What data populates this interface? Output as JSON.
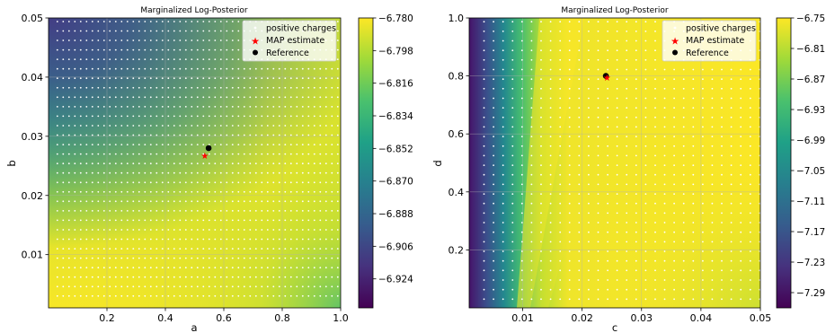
{
  "colors": {
    "viridis": [
      "#440154",
      "#46327e",
      "#365c8d",
      "#277f8e",
      "#1fa187",
      "#4ac16d",
      "#a0da39",
      "#fde725"
    ],
    "map_marker": "#ff0000",
    "reference_marker": "#000000",
    "sample_points": "#ffffff",
    "grid": "#b0b0b0"
  },
  "chart_data": [
    {
      "type": "heatmap",
      "title": "Marginalized Log-Posterior",
      "xlabel": "a",
      "ylabel": "b",
      "xlim": [
        0.0,
        1.0
      ],
      "ylim": [
        0.001,
        0.05
      ],
      "x_ticks": [
        "0.2",
        "0.4",
        "0.6",
        "0.8",
        "1.0"
      ],
      "x_tick_values": [
        0.2,
        0.4,
        0.6,
        0.8,
        1.0
      ],
      "y_ticks": [
        "0.01",
        "0.02",
        "0.03",
        "0.04",
        "0.05"
      ],
      "y_tick_values": [
        0.01,
        0.02,
        0.03,
        0.04,
        0.05
      ],
      "grid": true,
      "colorbar": {
        "range": [
          -6.94,
          -6.78
        ],
        "ticks": [
          "−6.780",
          "−6.798",
          "−6.816",
          "−6.834",
          "−6.852",
          "−6.870",
          "−6.888",
          "−6.906",
          "−6.924"
        ],
        "tick_values": [
          -6.78,
          -6.798,
          -6.816,
          -6.834,
          -6.852,
          -6.87,
          -6.888,
          -6.906,
          -6.924
        ]
      },
      "legend": {
        "placement": "top-right",
        "entries": [
          "positive charges",
          "MAP estimate",
          "Reference"
        ]
      },
      "map_estimate": {
        "x": 0.535,
        "y": 0.0268
      },
      "reference": {
        "x": 0.548,
        "y": 0.028
      },
      "sample_grid": {
        "x_start": 0.03,
        "x_step": 0.02,
        "y_start": 0.003,
        "y_step": 0.0016
      },
      "surface": {
        "low_value": -6.94,
        "high_value": -6.78,
        "low_corner": "top-left",
        "high_region": "bottom-center"
      }
    },
    {
      "type": "heatmap",
      "title": "Marginalized Log-Posterior",
      "xlabel": "c",
      "ylabel": "d",
      "xlim": [
        0.001,
        0.05
      ],
      "ylim": [
        0.0,
        1.0
      ],
      "x_ticks": [
        "0.01",
        "0.02",
        "0.03",
        "0.04",
        "0.05"
      ],
      "x_tick_values": [
        0.01,
        0.02,
        0.03,
        0.04,
        0.05
      ],
      "y_ticks": [
        "0.2",
        "0.4",
        "0.6",
        "0.8",
        "1.0"
      ],
      "y_tick_values": [
        0.2,
        0.4,
        0.6,
        0.8,
        1.0
      ],
      "grid": true,
      "colorbar": {
        "range": [
          -7.32,
          -6.75
        ],
        "ticks": [
          "−6.75",
          "−6.81",
          "−6.87",
          "−6.93",
          "−6.99",
          "−7.05",
          "−7.11",
          "−7.17",
          "−7.23",
          "−7.29"
        ],
        "tick_values": [
          -6.75,
          -6.81,
          -6.87,
          -6.93,
          -6.99,
          -7.05,
          -7.11,
          -7.17,
          -7.23,
          -7.29
        ]
      },
      "legend": {
        "placement": "top-right",
        "entries": [
          "positive charges",
          "MAP estimate",
          "Reference"
        ]
      },
      "map_estimate": {
        "x": 0.0242,
        "y": 0.795
      },
      "reference": {
        "x": 0.024,
        "y": 0.8
      },
      "sample_grid": {
        "x_start": 0.0035,
        "x_step": 0.0016,
        "y_start": 0.03,
        "y_step": 0.033
      },
      "surface": {
        "low_value": -7.32,
        "high_value": -6.75,
        "low_edge": "left",
        "high_region": "center-right"
      }
    }
  ]
}
